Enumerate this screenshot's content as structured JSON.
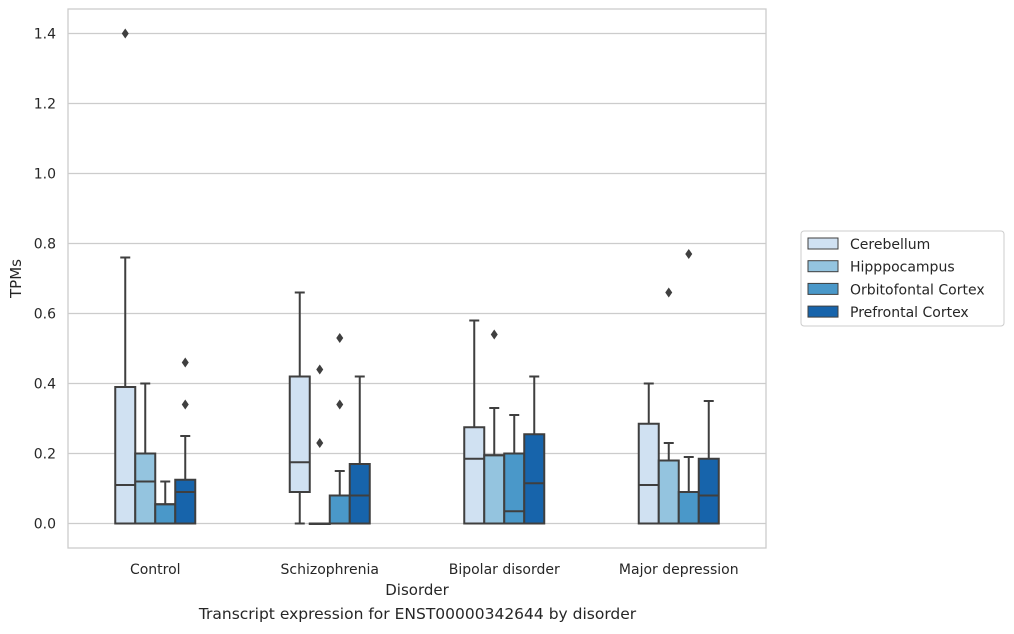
{
  "chart_data": {
    "type": "box",
    "caption": "Transcript expression for ENST00000342644 by disorder",
    "xlabel": "Disorder",
    "ylabel": "TPMs",
    "ylim": [
      -0.07,
      1.47
    ],
    "yticks": [
      "0.0",
      "0.2",
      "0.4",
      "0.6",
      "0.8",
      "1.0",
      "1.2",
      "1.4"
    ],
    "grid": "horizontal",
    "legend_position": "center-right, outside plot",
    "categories": [
      "Control",
      "Schizophrenia",
      "Bipolar disorder",
      "Major depression"
    ],
    "series": [
      {
        "name": "Cerebellum",
        "color": "#d0e1f2",
        "boxes": [
          {
            "q1": 0.0,
            "median": 0.11,
            "q3": 0.39,
            "whisker_low": 0.0,
            "whisker_high": 0.76,
            "outliers": [
              1.4
            ]
          },
          {
            "q1": 0.09,
            "median": 0.175,
            "q3": 0.42,
            "whisker_low": 0.0,
            "whisker_high": 0.66,
            "outliers": []
          },
          {
            "q1": 0.0,
            "median": 0.185,
            "q3": 0.275,
            "whisker_low": 0.0,
            "whisker_high": 0.58,
            "outliers": []
          },
          {
            "q1": 0.0,
            "median": 0.11,
            "q3": 0.285,
            "whisker_low": 0.0,
            "whisker_high": 0.4,
            "outliers": []
          }
        ]
      },
      {
        "name": "Hipppocampus",
        "color": "#94c4df",
        "boxes": [
          {
            "q1": 0.0,
            "median": 0.12,
            "q3": 0.2,
            "whisker_low": 0.0,
            "whisker_high": 0.4,
            "outliers": []
          },
          {
            "q1": 0.0,
            "median": 0.0,
            "q3": 0.0,
            "whisker_low": 0.0,
            "whisker_high": 0.0,
            "outliers": [
              0.23,
              0.44
            ]
          },
          {
            "q1": 0.0,
            "median": 0.195,
            "q3": 0.195,
            "whisker_low": 0.0,
            "whisker_high": 0.33,
            "outliers": [
              0.54
            ]
          },
          {
            "q1": 0.0,
            "median": 0.18,
            "q3": 0.18,
            "whisker_low": 0.0,
            "whisker_high": 0.23,
            "outliers": [
              0.66
            ]
          }
        ]
      },
      {
        "name": "Orbitofontal Cortex",
        "color": "#4a98c9",
        "boxes": [
          {
            "q1": 0.0,
            "median": 0.055,
            "q3": 0.055,
            "whisker_low": 0.0,
            "whisker_high": 0.12,
            "outliers": []
          },
          {
            "q1": 0.0,
            "median": 0.08,
            "q3": 0.08,
            "whisker_low": 0.0,
            "whisker_high": 0.15,
            "outliers": [
              0.34,
              0.53
            ]
          },
          {
            "q1": 0.0,
            "median": 0.035,
            "q3": 0.2,
            "whisker_low": 0.0,
            "whisker_high": 0.31,
            "outliers": []
          },
          {
            "q1": 0.0,
            "median": 0.09,
            "q3": 0.09,
            "whisker_low": 0.0,
            "whisker_high": 0.19,
            "outliers": [
              0.77
            ]
          }
        ]
      },
      {
        "name": "Prefrontal Cortex",
        "color": "#1764ab",
        "boxes": [
          {
            "q1": 0.0,
            "median": 0.09,
            "q3": 0.125,
            "whisker_low": 0.0,
            "whisker_high": 0.25,
            "outliers": [
              0.34,
              0.46
            ]
          },
          {
            "q1": 0.0,
            "median": 0.08,
            "q3": 0.17,
            "whisker_low": 0.0,
            "whisker_high": 0.42,
            "outliers": []
          },
          {
            "q1": 0.0,
            "median": 0.115,
            "q3": 0.255,
            "whisker_low": 0.0,
            "whisker_high": 0.42,
            "outliers": []
          },
          {
            "q1": 0.0,
            "median": 0.08,
            "q3": 0.185,
            "whisker_low": 0.0,
            "whisker_high": 0.35,
            "outliers": []
          }
        ]
      }
    ]
  }
}
